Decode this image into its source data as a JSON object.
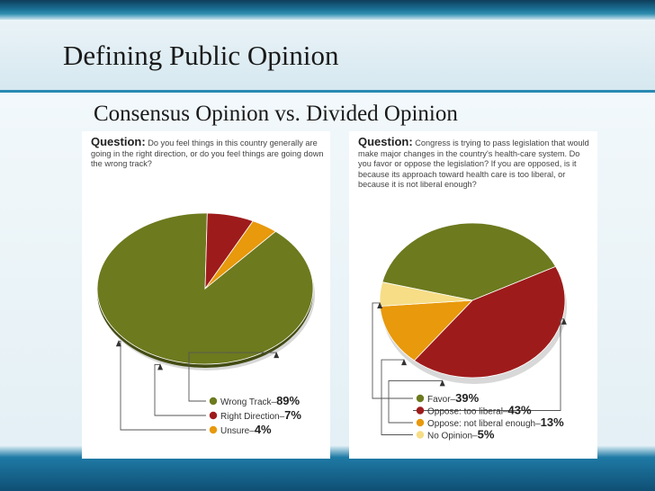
{
  "slide": {
    "title": "Defining Public Opinion",
    "subtitle": "Consensus Opinion vs. Divided Opinion"
  },
  "colors": {
    "olive": "#6d7a1e",
    "red": "#9e1b1b",
    "orange": "#e8990c",
    "light_yellow": "#f6dd86",
    "accent_blue": "#2a8ab3"
  },
  "chart_data": [
    {
      "type": "pie",
      "question_label": "Question:",
      "question_text": "Do you feel things in this country generally are going in the right direction, or do you feel things are going down the wrong track?",
      "slices": [
        {
          "label": "Wrong Track",
          "value": 89,
          "value_text": "89%",
          "color": "#6d7a1e"
        },
        {
          "label": "Right Direction",
          "value": 7,
          "value_text": "7%",
          "color": "#9e1b1b"
        },
        {
          "label": "Unsure",
          "value": 4,
          "value_text": "4%",
          "color": "#e8990c"
        }
      ]
    },
    {
      "type": "pie",
      "question_label": "Question:",
      "question_text": "Congress is trying to pass legislation that would make major changes in the country's health-care system. Do you favor or oppose the legislation? If you are opposed, is it because its approach toward health care is too liberal, or because it is not liberal enough?",
      "slices": [
        {
          "label": "Favor",
          "value": 39,
          "value_text": "39%",
          "color": "#6d7a1e"
        },
        {
          "label": "Oppose: too liberal",
          "value": 43,
          "value_text": "43%",
          "color": "#9e1b1b"
        },
        {
          "label": "Oppose: not liberal enough",
          "value": 13,
          "value_text": "13%",
          "color": "#e8990c"
        },
        {
          "label": "No Opinion",
          "value": 5,
          "value_text": "5%",
          "color": "#f6dd86"
        }
      ]
    }
  ]
}
